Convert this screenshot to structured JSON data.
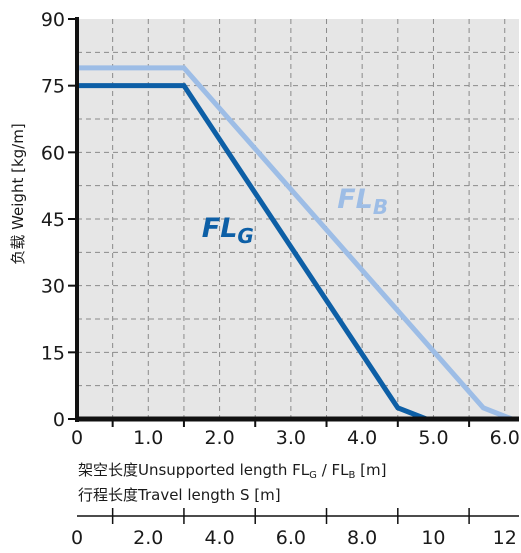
{
  "chart_data": {
    "type": "line",
    "ylabel": "负载 Weight  [kg/m]",
    "xlabel": "架空长度Unsupported length FL",
    "xlabel_sub_g": "G",
    "xlabel_sep": " / FL",
    "xlabel_sub_b": "B",
    "xlabel_unit": " [m]",
    "x2label": "行程长度Travel length S [m]",
    "xlim": [
      0,
      6.2
    ],
    "ylim": [
      0,
      90
    ],
    "x2lim": [
      0,
      12.4
    ],
    "grid": true,
    "yticks": [
      "0",
      "15",
      "30",
      "45",
      "60",
      "75",
      "90"
    ],
    "xticks": [
      "0",
      "1.0",
      "2.0",
      "3.0",
      "4.0",
      "5.0",
      "6.0"
    ],
    "x2ticks": [
      "0",
      "2.0",
      "4.0",
      "6.0",
      "8.0",
      "10",
      "12"
    ],
    "series": [
      {
        "label_main": "FL",
        "label_sub": "G",
        "color": "#0d5fa6",
        "x": [
          0,
          1.5,
          4.5,
          4.9
        ],
        "y": [
          75,
          75,
          2.5,
          0
        ]
      },
      {
        "label_main": "FL",
        "label_sub": "B",
        "color": "#9dbde6",
        "x": [
          0,
          1.5,
          5.7,
          6.1
        ],
        "y": [
          79,
          79,
          2.5,
          0
        ]
      }
    ]
  }
}
